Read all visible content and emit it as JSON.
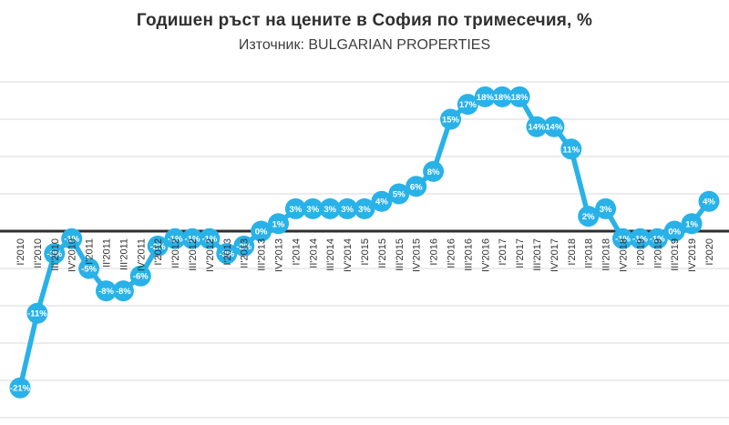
{
  "chart_data": {
    "type": "line",
    "title": "Годишен ръст на цените в София по тримесечия, %",
    "subtitle": "Източник: BULGARIAN PROPERTIES",
    "legend": "none",
    "grid": "horizontal",
    "ylim": [
      -25,
      20
    ],
    "grid_step": 5,
    "categories": [
      "I'2010",
      "II'2010",
      "III'2010",
      "IV'2010",
      "I'2011",
      "II'2011",
      "III'2011",
      "IV'2011",
      "I'2012",
      "II'2012",
      "III'2012",
      "IV'2012",
      "I'2013",
      "II'2013",
      "III'2013",
      "IV'2013",
      "I'2014",
      "II'2014",
      "III'2014",
      "IV'2014",
      "I'2015",
      "II'2015",
      "III'2015",
      "IV'2015",
      "I'2016",
      "II'2016",
      "III'2016",
      "IV'2016",
      "I'2017",
      "II'2017",
      "III'2017",
      "IV'2017",
      "I'2018",
      "II'2018",
      "III'2018",
      "IV'2018",
      "I'2019",
      "II'2019",
      "III'2019",
      "IV'2019",
      "I'2020"
    ],
    "values": [
      -21,
      -11,
      -3,
      -1,
      -5,
      -8,
      -8,
      -6,
      -2,
      -1,
      -1,
      -1,
      -3,
      -2,
      0,
      1,
      3,
      3,
      3,
      3,
      3,
      4,
      5,
      6,
      8,
      15,
      17,
      18,
      18,
      18,
      14,
      14,
      11,
      2,
      3,
      -1,
      -1,
      -1,
      0,
      1,
      4
    ],
    "labels": [
      "-21%",
      "-11%",
      "-3%",
      "-1%",
      "-5%",
      "-8%",
      "-8%",
      "-6%",
      "-2%",
      "-1%",
      "-1%",
      "-1%",
      "-3%",
      "-2%",
      "0%",
      "1%",
      "3%",
      "3%",
      "3%",
      "3%",
      "3%",
      "4%",
      "5%",
      "6%",
      "8%",
      "15%",
      "17%",
      "18%",
      "18%",
      "18%",
      "14%",
      "14%",
      "11%",
      "2%",
      "3%",
      "-1%",
      "-1%",
      "-1%",
      "0%",
      "1%",
      "4%"
    ],
    "colors": {
      "series": "#29b2e8",
      "data_label": "#ffffff",
      "grid": "#d9d9d9",
      "zero_axis": "#2e2e2e",
      "tick_label": "#333333",
      "title": "#2f2f2f",
      "subtitle": "#3d3d3d"
    }
  }
}
